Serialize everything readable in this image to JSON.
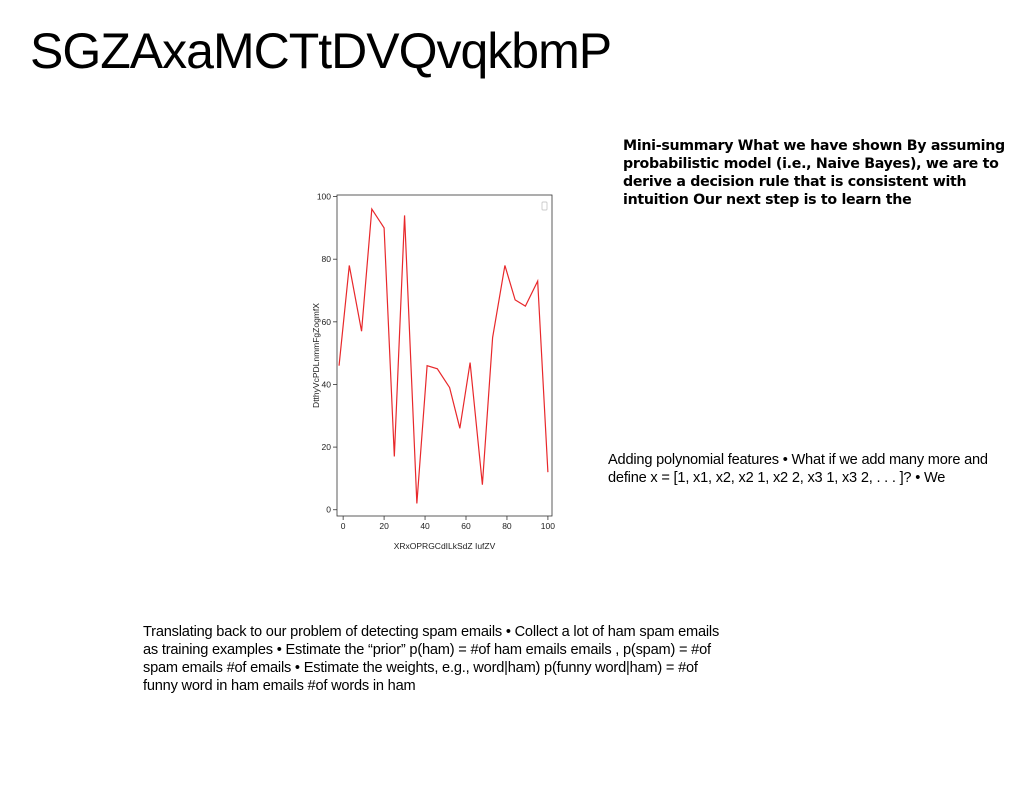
{
  "slide": {
    "title": "SGZAxaMCTtDVQvqkbmP",
    "summary_text": "Mini-summary What we have shown By assuming probabilistic model (i.e., Naive Bayes), we are to derive a decision rule that is consistent with intuition Our next step is to learn the",
    "polynomial_text": "Adding polynomial features • What if we add many more and define x = [1, x1, x2, x2 1, x2 2, x3 1, x3 2, . . . ]? • We",
    "translating_text": "Translating back to our problem of detecting spam emails • Collect a lot of ham spam emails as training examples • Estimate the “prior” p(ham) = #of ham emails emails , p(spam) = #of spam emails #of emails • Estimate the weights, e.g., word|ham) p(funny word|ham) = #of funny word in ham emails #of words in ham"
  },
  "chart_data": {
    "type": "line",
    "xlabel": "XRxOPRGCdILkSdZ IufZV",
    "ylabel": "DtthyVcPDLnmmFgZogmfX",
    "xlim": [
      -3,
      102
    ],
    "ylim": [
      -2,
      100.5
    ],
    "x_ticks": [
      "0",
      "20",
      "40",
      "60",
      "80",
      "100"
    ],
    "y_ticks": [
      "0",
      "20",
      "40",
      "60",
      "80",
      "100"
    ],
    "grid": false,
    "legend": "top-right",
    "series": [
      {
        "color": "#e8282b",
        "x": [
          -2,
          3,
          9,
          14,
          20,
          25,
          30,
          36,
          41,
          46,
          52,
          57,
          62,
          68,
          73,
          79,
          84,
          89,
          95,
          100
        ],
        "y": [
          46,
          78,
          57,
          96,
          90,
          17,
          94,
          2,
          46,
          45,
          39,
          26,
          47,
          8,
          55,
          78,
          67,
          65,
          73,
          12
        ]
      }
    ]
  }
}
